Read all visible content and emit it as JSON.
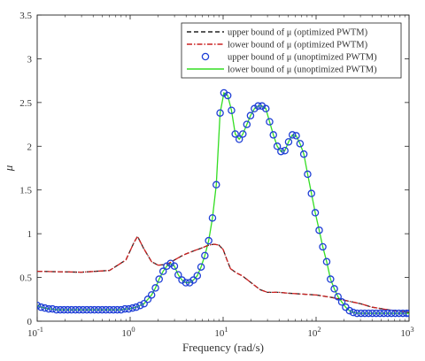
{
  "chart_data": {
    "type": "line",
    "xscale": "log",
    "xlim": [
      0.1,
      1000
    ],
    "ylim": [
      0,
      3.5
    ],
    "xlabel": "Frequency (rad/s)",
    "ylabel": "μ",
    "x_ticks": [
      {
        "value": 0.1,
        "base": "10",
        "exp": "-1"
      },
      {
        "value": 1,
        "base": "10",
        "exp": "0"
      },
      {
        "value": 10,
        "base": "10",
        "exp": "1"
      },
      {
        "value": 100,
        "base": "10",
        "exp": "2"
      },
      {
        "value": 1000,
        "base": "10",
        "exp": "3"
      }
    ],
    "y_ticks": [
      0,
      0.5,
      1,
      1.5,
      2,
      2.5,
      3,
      3.5
    ],
    "y_tick_labels": [
      "0",
      "0.5",
      "1",
      "1.5",
      "2",
      "2.5",
      "3",
      "3.5"
    ],
    "legend_position": "top-right",
    "series": [
      {
        "name": "upper bound of μ (optimized PWTM)",
        "style": "dashed",
        "color": "#222222",
        "x": [
          0.1,
          0.3,
          0.6,
          0.9,
          1.1,
          1.2,
          1.4,
          1.7,
          2,
          2.5,
          3,
          3.5,
          4,
          5,
          6,
          7,
          8,
          9,
          10,
          11,
          12,
          14,
          16,
          20,
          25,
          30,
          40,
          50,
          70,
          100,
          150,
          200,
          300,
          400,
          600,
          1000
        ],
        "y": [
          0.57,
          0.56,
          0.58,
          0.7,
          0.9,
          0.97,
          0.83,
          0.68,
          0.64,
          0.65,
          0.7,
          0.74,
          0.77,
          0.81,
          0.84,
          0.87,
          0.88,
          0.87,
          0.82,
          0.7,
          0.6,
          0.55,
          0.52,
          0.44,
          0.36,
          0.33,
          0.33,
          0.32,
          0.31,
          0.3,
          0.27,
          0.24,
          0.2,
          0.16,
          0.13,
          0.1
        ]
      },
      {
        "name": "lower bound of μ (optimized PWTM)",
        "style": "dashdot",
        "color": "#cc2222",
        "x": [
          0.1,
          0.3,
          0.6,
          0.9,
          1.1,
          1.2,
          1.4,
          1.7,
          2,
          2.5,
          3,
          3.5,
          4,
          5,
          6,
          7,
          8,
          9,
          10,
          11,
          12,
          14,
          16,
          20,
          25,
          30,
          40,
          50,
          70,
          100,
          150,
          200,
          300,
          400,
          600,
          1000
        ],
        "y": [
          0.57,
          0.56,
          0.58,
          0.7,
          0.9,
          0.97,
          0.83,
          0.68,
          0.64,
          0.65,
          0.7,
          0.74,
          0.77,
          0.81,
          0.84,
          0.87,
          0.88,
          0.87,
          0.82,
          0.7,
          0.6,
          0.55,
          0.52,
          0.44,
          0.36,
          0.33,
          0.33,
          0.32,
          0.31,
          0.3,
          0.27,
          0.24,
          0.2,
          0.16,
          0.13,
          0.1
        ]
      },
      {
        "name": "upper bound of μ (unoptimized PWTM)",
        "style": "markers",
        "color": "#1f3fd6",
        "x": [
          0.1,
          0.11,
          0.121,
          0.133,
          0.146,
          0.161,
          0.177,
          0.194,
          0.213,
          0.234,
          0.258,
          0.283,
          0.311,
          0.342,
          0.376,
          0.413,
          0.454,
          0.499,
          0.548,
          0.602,
          0.662,
          0.727,
          0.799,
          0.878,
          0.965,
          1.06,
          1.16,
          1.28,
          1.41,
          1.55,
          1.7,
          1.87,
          2.05,
          2.26,
          2.48,
          2.72,
          2.99,
          3.29,
          3.61,
          3.97,
          4.36,
          4.79,
          5.27,
          5.79,
          6.36,
          6.99,
          7.68,
          8.44,
          9.28,
          10.2,
          11.2,
          12.3,
          13.5,
          14.9,
          16.3,
          18,
          19.7,
          21.7,
          23.8,
          26.2,
          28.8,
          31.6,
          34.7,
          38.2,
          41.9,
          46.1,
          50.6,
          55.6,
          61.1,
          67.2,
          73.8,
          81.1,
          89.1,
          97.9,
          108,
          118,
          130,
          143,
          157,
          172,
          189,
          208,
          229,
          251,
          276,
          304,
          334,
          367,
          403,
          443,
          487,
          535,
          588,
          646,
          710,
          780,
          857,
          942,
          1000
        ],
        "y": [
          0.18,
          0.16,
          0.15,
          0.14,
          0.14,
          0.13,
          0.13,
          0.13,
          0.13,
          0.13,
          0.13,
          0.13,
          0.13,
          0.13,
          0.13,
          0.13,
          0.13,
          0.13,
          0.13,
          0.13,
          0.13,
          0.13,
          0.13,
          0.14,
          0.14,
          0.15,
          0.16,
          0.18,
          0.2,
          0.25,
          0.3,
          0.38,
          0.48,
          0.57,
          0.63,
          0.66,
          0.63,
          0.53,
          0.47,
          0.44,
          0.44,
          0.47,
          0.52,
          0.62,
          0.75,
          0.92,
          1.18,
          1.56,
          2.38,
          2.61,
          2.58,
          2.41,
          2.14,
          2.08,
          2.14,
          2.25,
          2.35,
          2.43,
          2.46,
          2.46,
          2.43,
          2.28,
          2.13,
          2.0,
          1.94,
          1.95,
          2.05,
          2.13,
          2.12,
          2.03,
          1.91,
          1.68,
          1.46,
          1.24,
          1.04,
          0.85,
          0.68,
          0.48,
          0.37,
          0.28,
          0.22,
          0.16,
          0.12,
          0.1,
          0.09,
          0.09,
          0.09,
          0.09,
          0.09,
          0.09,
          0.09,
          0.09,
          0.09,
          0.09,
          0.09,
          0.09,
          0.09,
          0.09,
          0.09
        ]
      },
      {
        "name": "lower bound of μ (unoptimized PWTM)",
        "style": "solid",
        "color": "#33dd22",
        "x": [
          0.1,
          0.11,
          0.121,
          0.133,
          0.146,
          0.161,
          0.177,
          0.194,
          0.213,
          0.234,
          0.258,
          0.283,
          0.311,
          0.342,
          0.376,
          0.413,
          0.454,
          0.499,
          0.548,
          0.602,
          0.662,
          0.727,
          0.799,
          0.878,
          0.965,
          1.06,
          1.16,
          1.28,
          1.41,
          1.55,
          1.7,
          1.87,
          2.05,
          2.26,
          2.48,
          2.72,
          2.99,
          3.29,
          3.61,
          3.97,
          4.36,
          4.79,
          5.27,
          5.79,
          6.36,
          6.99,
          7.68,
          8.44,
          9.28,
          10.2,
          11.2,
          12.3,
          13.5,
          14.9,
          16.3,
          18,
          19.7,
          21.7,
          23.8,
          26.2,
          28.8,
          31.6,
          34.7,
          38.2,
          41.9,
          46.1,
          50.6,
          55.6,
          61.1,
          67.2,
          73.8,
          81.1,
          89.1,
          97.9,
          108,
          118,
          130,
          143,
          157,
          172,
          189,
          208,
          229,
          251,
          276,
          304,
          334,
          367,
          403,
          443,
          487,
          535,
          588,
          646,
          710,
          780,
          857,
          942,
          1000
        ],
        "y": [
          0.18,
          0.16,
          0.15,
          0.14,
          0.14,
          0.13,
          0.13,
          0.13,
          0.13,
          0.13,
          0.13,
          0.13,
          0.13,
          0.13,
          0.13,
          0.13,
          0.13,
          0.13,
          0.13,
          0.13,
          0.13,
          0.13,
          0.13,
          0.14,
          0.14,
          0.15,
          0.16,
          0.18,
          0.2,
          0.25,
          0.3,
          0.38,
          0.48,
          0.57,
          0.63,
          0.66,
          0.63,
          0.53,
          0.47,
          0.44,
          0.44,
          0.47,
          0.52,
          0.62,
          0.75,
          0.92,
          1.18,
          1.56,
          2.38,
          2.61,
          2.58,
          2.41,
          2.14,
          2.08,
          2.14,
          2.25,
          2.35,
          2.43,
          2.46,
          2.46,
          2.43,
          2.28,
          2.13,
          2.0,
          1.94,
          1.95,
          2.05,
          2.13,
          2.12,
          2.03,
          1.91,
          1.68,
          1.46,
          1.24,
          1.04,
          0.85,
          0.68,
          0.48,
          0.37,
          0.28,
          0.22,
          0.16,
          0.12,
          0.1,
          0.09,
          0.09,
          0.09,
          0.09,
          0.09,
          0.09,
          0.09,
          0.09,
          0.09,
          0.09,
          0.09,
          0.09,
          0.09,
          0.09,
          0.09
        ]
      }
    ]
  }
}
